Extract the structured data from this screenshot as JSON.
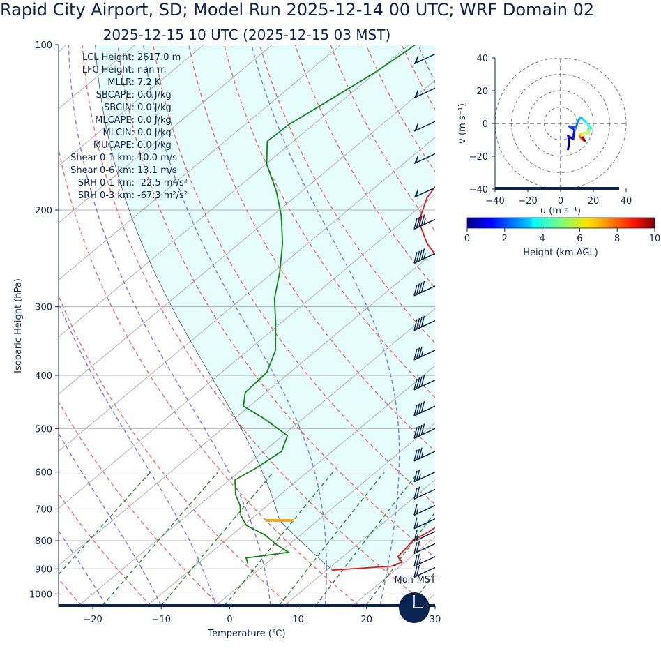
{
  "title": "Rapid City Airport, SD; Model Run 2025-12-14 00 UTC; WRF Domain 02",
  "subtitle": "2025-12-15 10 UTC  (2025-12-15 03 MST)",
  "indices": [
    {
      "label": "LCL Height:",
      "value": "2617.0 m"
    },
    {
      "label": "LFC Height:",
      "value": "nan m"
    },
    {
      "label": "MLLR:",
      "value": "7.2 K"
    },
    {
      "label": "SBCAPE:",
      "value": "0.0 J/kg"
    },
    {
      "label": "SBCIN:",
      "value": "0.0 J/kg"
    },
    {
      "label": "MLCAPE:",
      "value": "0.0 J/kg"
    },
    {
      "label": "MLCIN:",
      "value": "0.0 J/kg"
    },
    {
      "label": "MUCAPE:",
      "value": "0.0 J/kg"
    },
    {
      "label": "Shear 0-1 km:",
      "value": "10.0 m/s"
    },
    {
      "label": "Shear 0-6 km:",
      "value": "13.1 m/s"
    },
    {
      "label": "SRH 0-1 km:",
      "value": "-22.5 m²/s²"
    },
    {
      "label": "SRH 0-3 km:",
      "value": "-67.3 m²/s²"
    }
  ],
  "clock_label": "Mon-MST",
  "colors": {
    "text": "#0a2350",
    "temperature": "#ee1111",
    "dewpoint": "#118811",
    "dry_adiabat": "#ef6c6c",
    "moist_adiabat": "#7777ee",
    "mixing_ratio": "#22882a",
    "cape_fill": "#e6fdfd",
    "lcl_marker": "#f4a918",
    "barb": "#0a2350"
  },
  "chart_data": [
    {
      "type": "line",
      "subtype": "skew-T log-p sounding",
      "xlabel": "Temperature (℃)",
      "ylabel": "Isobaric Height (hPa)",
      "xlim": [
        -25,
        30
      ],
      "ylim": [
        1050,
        100
      ],
      "y_scale": "log",
      "x_ticks": [
        -20,
        -10,
        0,
        10,
        20,
        30
      ],
      "y_ticks": [
        100,
        200,
        300,
        400,
        500,
        600,
        700,
        800,
        900,
        1000
      ],
      "grid": true,
      "series": [
        {
          "role": "temperature",
          "points": [
            {
              "p": 905,
              "t": 10.8
            },
            {
              "p": 890,
              "t": 18.8
            },
            {
              "p": 875,
              "t": 19.6
            },
            {
              "p": 855,
              "t": 18.0
            },
            {
              "p": 830,
              "t": 17.8
            },
            {
              "p": 800,
              "t": 17.4
            },
            {
              "p": 770,
              "t": 18.2
            },
            {
              "p": 740,
              "t": 18.6
            },
            {
              "p": 700,
              "t": 17.2
            },
            {
              "p": 660,
              "t": 15.6
            },
            {
              "p": 620,
              "t": 15.0
            },
            {
              "p": 580,
              "t": 13.4
            },
            {
              "p": 540,
              "t": 10.6
            },
            {
              "p": 500,
              "t": 7.2
            },
            {
              "p": 460,
              "t": 3.4
            },
            {
              "p": 420,
              "t": -0.4
            },
            {
              "p": 380,
              "t": -4.6
            },
            {
              "p": 340,
              "t": -9.6
            },
            {
              "p": 300,
              "t": -15.6
            },
            {
              "p": 270,
              "t": -21.4
            },
            {
              "p": 250,
              "t": -27.0
            },
            {
              "p": 230,
              "t": -32.6
            },
            {
              "p": 210,
              "t": -37.6
            },
            {
              "p": 190,
              "t": -40.6
            },
            {
              "p": 170,
              "t": -42.4
            },
            {
              "p": 150,
              "t": -43.8
            },
            {
              "p": 130,
              "t": -46.6
            },
            {
              "p": 115,
              "t": -48.8
            },
            {
              "p": 100,
              "t": -52.0
            }
          ]
        },
        {
          "role": "dewpoint",
          "points": [
            {
              "p": 880,
              "t": -2.7
            },
            {
              "p": 860,
              "t": -3.9
            },
            {
              "p": 840,
              "t": 1.3
            },
            {
              "p": 815,
              "t": -1.6
            },
            {
              "p": 780,
              "t": -5.3
            },
            {
              "p": 750,
              "t": -9.6
            },
            {
              "p": 720,
              "t": -12.1
            },
            {
              "p": 690,
              "t": -14.0
            },
            {
              "p": 660,
              "t": -16.5
            },
            {
              "p": 620,
              "t": -19.2
            },
            {
              "p": 590,
              "t": -18.2
            },
            {
              "p": 550,
              "t": -17.4
            },
            {
              "p": 515,
              "t": -19.3
            },
            {
              "p": 480,
              "t": -25.6
            },
            {
              "p": 455,
              "t": -30.9
            },
            {
              "p": 430,
              "t": -33.0
            },
            {
              "p": 395,
              "t": -33.4
            },
            {
              "p": 360,
              "t": -36.0
            },
            {
              "p": 320,
              "t": -40.9
            },
            {
              "p": 290,
              "t": -45.2
            },
            {
              "p": 260,
              "t": -49.0
            },
            {
              "p": 230,
              "t": -53.7
            },
            {
              "p": 205,
              "t": -58.7
            },
            {
              "p": 185,
              "t": -63.7
            },
            {
              "p": 165,
              "t": -69.9
            },
            {
              "p": 150,
              "t": -73.8
            },
            {
              "p": 140,
              "t": -73.6
            },
            {
              "p": 125,
              "t": -71.8
            },
            {
              "p": 112,
              "t": -70.1
            },
            {
              "p": 100,
              "t": -69.1
            }
          ]
        }
      ],
      "lcl": {
        "p": 735,
        "t": 2.0
      },
      "wind_barbs": [
        {
          "p": 104,
          "speed_kt": 50
        },
        {
          "p": 120,
          "speed_kt": 50
        },
        {
          "p": 138,
          "speed_kt": 50
        },
        {
          "p": 158,
          "speed_kt": 50
        },
        {
          "p": 182,
          "speed_kt": 50
        },
        {
          "p": 208,
          "speed_kt": 45
        },
        {
          "p": 240,
          "speed_kt": 45
        },
        {
          "p": 275,
          "speed_kt": 40
        },
        {
          "p": 318,
          "speed_kt": 40
        },
        {
          "p": 360,
          "speed_kt": 35
        },
        {
          "p": 408,
          "speed_kt": 40
        },
        {
          "p": 455,
          "speed_kt": 40
        },
        {
          "p": 500,
          "speed_kt": 40
        },
        {
          "p": 550,
          "speed_kt": 35
        },
        {
          "p": 600,
          "speed_kt": 25
        },
        {
          "p": 645,
          "speed_kt": 20
        },
        {
          "p": 690,
          "speed_kt": 15
        },
        {
          "p": 730,
          "speed_kt": 15
        },
        {
          "p": 770,
          "speed_kt": 15
        },
        {
          "p": 810,
          "speed_kt": 20
        },
        {
          "p": 855,
          "speed_kt": 25
        },
        {
          "p": 895,
          "speed_kt": 20
        }
      ]
    },
    {
      "type": "line",
      "subtype": "hodograph",
      "xlabel": "u (m s⁻¹)",
      "ylabel": "v (m s⁻¹)",
      "xlim": [
        -40,
        40
      ],
      "ylim": [
        -40,
        40
      ],
      "x_ticks": [
        -40,
        -20,
        0,
        20,
        40
      ],
      "y_ticks": [
        -40,
        -20,
        0,
        20,
        40
      ],
      "rings": [
        10,
        20,
        30,
        40
      ],
      "colorbar": {
        "label": "Height (km AGL)",
        "range": [
          0,
          10
        ],
        "ticks": [
          0,
          2,
          4,
          6,
          8,
          10
        ],
        "colormap": "jet"
      },
      "points": [
        {
          "h": 0.0,
          "u": 4.5,
          "v": -15.8
        },
        {
          "h": 0.4,
          "u": 5.4,
          "v": -11.3
        },
        {
          "h": 0.8,
          "u": 4.6,
          "v": -7.7
        },
        {
          "h": 1.2,
          "u": 7.7,
          "v": -9.5
        },
        {
          "h": 1.5,
          "u": 8.4,
          "v": -4.1
        },
        {
          "h": 1.8,
          "u": 5.3,
          "v": -1.8
        },
        {
          "h": 2.2,
          "u": 9.4,
          "v": -2.6
        },
        {
          "h": 2.6,
          "u": 10.2,
          "v": 0.5
        },
        {
          "h": 3.0,
          "u": 11.8,
          "v": 3.6
        },
        {
          "h": 3.4,
          "u": 13.6,
          "v": 2.8
        },
        {
          "h": 3.8,
          "u": 15.8,
          "v": 0.3
        },
        {
          "h": 4.3,
          "u": 18.7,
          "v": -2.9
        },
        {
          "h": 4.8,
          "u": 16.6,
          "v": -3.7
        },
        {
          "h": 5.3,
          "u": 17.2,
          "v": -6.1
        },
        {
          "h": 5.8,
          "u": 14.3,
          "v": -5.8
        },
        {
          "h": 6.4,
          "u": 11.9,
          "v": -6.6
        },
        {
          "h": 7.0,
          "u": 11.5,
          "v": -7.5
        },
        {
          "h": 7.6,
          "u": 12.0,
          "v": -8.4
        },
        {
          "h": 8.2,
          "u": 13.9,
          "v": -10.1
        },
        {
          "h": 8.8,
          "u": 14.7,
          "v": -10.3
        },
        {
          "h": 9.4,
          "u": 14.7,
          "v": -10.5
        },
        {
          "h": 10.0,
          "u": 13.6,
          "v": -8.5
        }
      ]
    }
  ]
}
